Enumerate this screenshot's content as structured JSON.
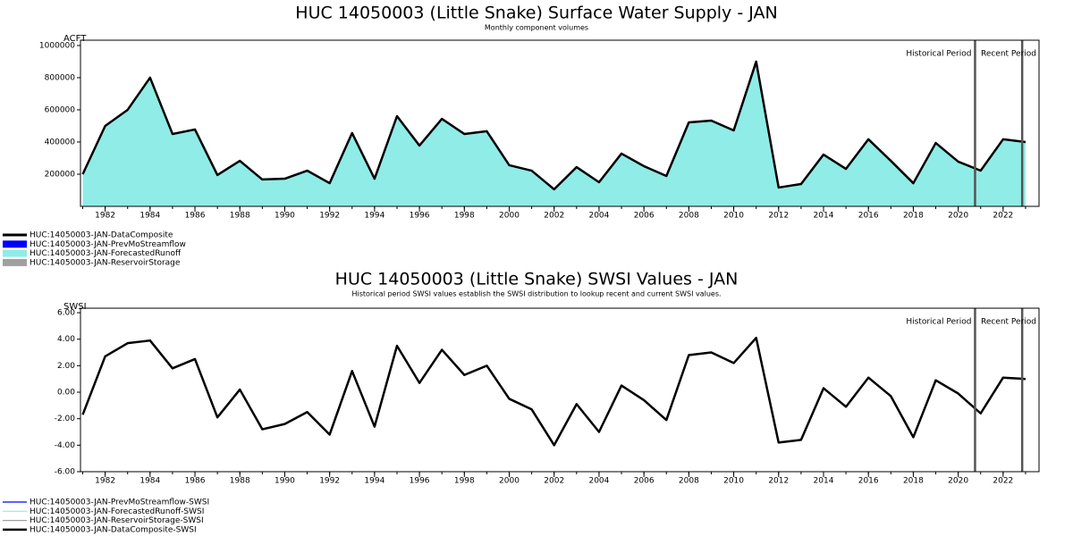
{
  "chart_data": [
    {
      "type": "area",
      "title": "HUC 14050003 (Little Snake) Surface Water Supply - JAN",
      "subtitle": "Monthly component volumes",
      "y_label": "ACFT",
      "x": [
        1981,
        1982,
        1983,
        1984,
        1985,
        1986,
        1987,
        1988,
        1989,
        1990,
        1991,
        1992,
        1993,
        1994,
        1995,
        1996,
        1997,
        1998,
        1999,
        2000,
        2001,
        2002,
        2003,
        2004,
        2005,
        2006,
        2007,
        2008,
        2009,
        2010,
        2011,
        2012,
        2013,
        2014,
        2015,
        2016,
        2017,
        2018,
        2019,
        2020,
        2021,
        2022,
        2023
      ],
      "series": [
        {
          "name": "HUC:14050003-JAN-DataComposite",
          "color": "#000000",
          "style": "line",
          "values": [
            200000,
            500000,
            600000,
            800000,
            450000,
            478000,
            195000,
            283000,
            167000,
            172000,
            222000,
            144000,
            456000,
            172000,
            561000,
            378000,
            544000,
            450000,
            467000,
            256000,
            222000,
            106000,
            244000,
            150000,
            328000,
            250000,
            189000,
            522000,
            533000,
            472000,
            900000,
            117000,
            139000,
            322000,
            233000,
            417000,
            283000,
            144000,
            394000,
            278000,
            222000,
            417000,
            400000
          ]
        },
        {
          "name": "HUC:14050003-JAN-PrevMoStreamflow",
          "color": "#0000ff",
          "style": "area"
        },
        {
          "name": "HUC:14050003-JAN-ForecastedRunoff",
          "color": "#90ece6",
          "style": "area",
          "values": [
            200000,
            500000,
            600000,
            800000,
            450000,
            478000,
            195000,
            283000,
            167000,
            172000,
            222000,
            144000,
            456000,
            172000,
            561000,
            378000,
            544000,
            450000,
            467000,
            256000,
            222000,
            106000,
            244000,
            150000,
            328000,
            250000,
            189000,
            522000,
            533000,
            472000,
            900000,
            117000,
            139000,
            322000,
            233000,
            417000,
            283000,
            144000,
            394000,
            278000,
            222000,
            417000,
            400000
          ]
        },
        {
          "name": "HUC:14050003-JAN-ReservoirStorage",
          "color": "#a0a0a0",
          "style": "area"
        }
      ],
      "xlim": [
        1980.9,
        2023.6
      ],
      "xticks": [
        1982,
        1984,
        1986,
        1988,
        1990,
        1992,
        1994,
        1996,
        1998,
        2000,
        2002,
        2004,
        2006,
        2008,
        2010,
        2012,
        2014,
        2016,
        2018,
        2020,
        2022
      ],
      "ylim": [
        0,
        1033000
      ],
      "yticks": [
        200000,
        400000,
        600000,
        800000,
        1000000
      ],
      "annotations": [
        "Historical Period",
        "Recent Period"
      ],
      "vlines": [
        2020.75,
        2022.85
      ]
    },
    {
      "type": "line",
      "title": "HUC 14050003 (Little Snake) SWSI Values - JAN",
      "subtitle": "Historical period SWSI values establish the SWSI distribution to lookup recent and current SWSI values.",
      "y_label": "SWSI",
      "x": [
        1981,
        1982,
        1983,
        1984,
        1985,
        1986,
        1987,
        1988,
        1989,
        1990,
        1991,
        1992,
        1993,
        1994,
        1995,
        1996,
        1997,
        1998,
        1999,
        2000,
        2001,
        2002,
        2003,
        2004,
        2005,
        2006,
        2007,
        2008,
        2009,
        2010,
        2011,
        2012,
        2013,
        2014,
        2015,
        2016,
        2017,
        2018,
        2019,
        2020,
        2021,
        2022,
        2023
      ],
      "series": [
        {
          "name": "HUC:14050003-JAN-PrevMoStreamflow-SWSI",
          "color": "#0000ff"
        },
        {
          "name": "HUC:14050003-JAN-ForecastedRunoff-SWSI",
          "color": "#90ece6"
        },
        {
          "name": "HUC:14050003-JAN-ReservoirStorage-SWSI",
          "color": "#a0a0a0"
        },
        {
          "name": "HUC:14050003-JAN-DataComposite-SWSI",
          "color": "#000000",
          "values": [
            -1.7,
            2.7,
            3.7,
            3.9,
            1.8,
            2.5,
            -1.9,
            0.2,
            -2.8,
            -2.4,
            -1.5,
            -3.2,
            1.6,
            -2.6,
            3.5,
            0.7,
            3.2,
            1.3,
            2.0,
            -0.5,
            -1.3,
            -4.0,
            -0.9,
            -3.0,
            0.5,
            -0.6,
            -2.1,
            2.8,
            3.0,
            2.2,
            4.1,
            -3.8,
            -3.6,
            0.3,
            -1.1,
            1.1,
            -0.3,
            -3.4,
            0.9,
            -0.1,
            -1.6,
            1.1,
            1.0
          ]
        }
      ],
      "xlim": [
        1980.9,
        2023.6
      ],
      "xticks": [
        1982,
        1984,
        1986,
        1988,
        1990,
        1992,
        1994,
        1996,
        1998,
        2000,
        2002,
        2004,
        2006,
        2008,
        2010,
        2012,
        2014,
        2016,
        2018,
        2020,
        2022
      ],
      "ylim": [
        -6,
        6.34
      ],
      "yticks": [
        {
          "value": 6,
          "label": "6.00"
        },
        {
          "value": 4,
          "label": "4.00"
        },
        {
          "value": 2,
          "label": "2.00"
        },
        {
          "value": 0,
          "label": "0.00"
        },
        {
          "value": -2,
          "label": "-2.00"
        },
        {
          "value": -4,
          "label": "-4.00"
        },
        {
          "value": -6,
          "label": "-6.00"
        }
      ],
      "annotations": [
        "Historical Period",
        "Recent Period"
      ],
      "vlines": [
        2020.75,
        2022.85
      ]
    }
  ]
}
